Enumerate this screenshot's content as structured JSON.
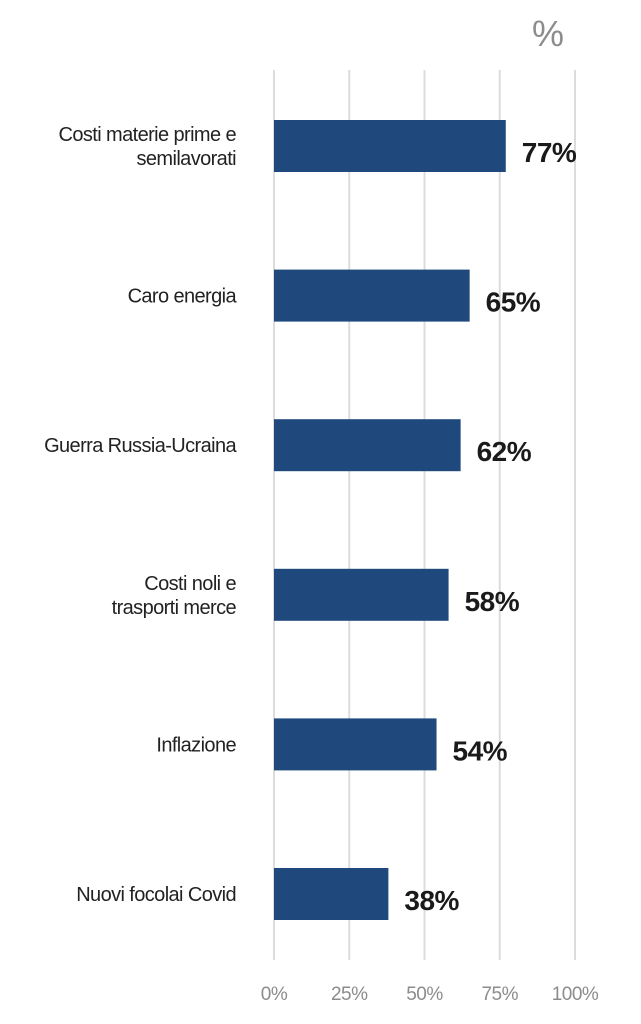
{
  "chart_data": {
    "type": "bar",
    "orientation": "horizontal",
    "unit": "%",
    "categories": [
      [
        "Costi materie prime e",
        "semilavorati"
      ],
      [
        "Caro energia"
      ],
      [
        "Guerra Russia-Ucraina"
      ],
      [
        "Costi noli e",
        "trasporti merce"
      ],
      [
        "Inflazione"
      ],
      [
        "Nuovi focolai Covid"
      ]
    ],
    "values": [
      77,
      65,
      62,
      58,
      54,
      38
    ],
    "value_labels": [
      "77%",
      "65%",
      "62%",
      "58%",
      "54%",
      "38%"
    ],
    "x_ticks": [
      0,
      25,
      50,
      75,
      100
    ],
    "x_tick_labels": [
      "0%",
      "25%",
      "50%",
      "75%",
      "100%"
    ],
    "xlim": [
      0,
      100
    ],
    "grid": true,
    "colors": {
      "bar": "#1f497d",
      "grid": "#dcdcdc",
      "axis_text": "#8c8c8c"
    }
  }
}
